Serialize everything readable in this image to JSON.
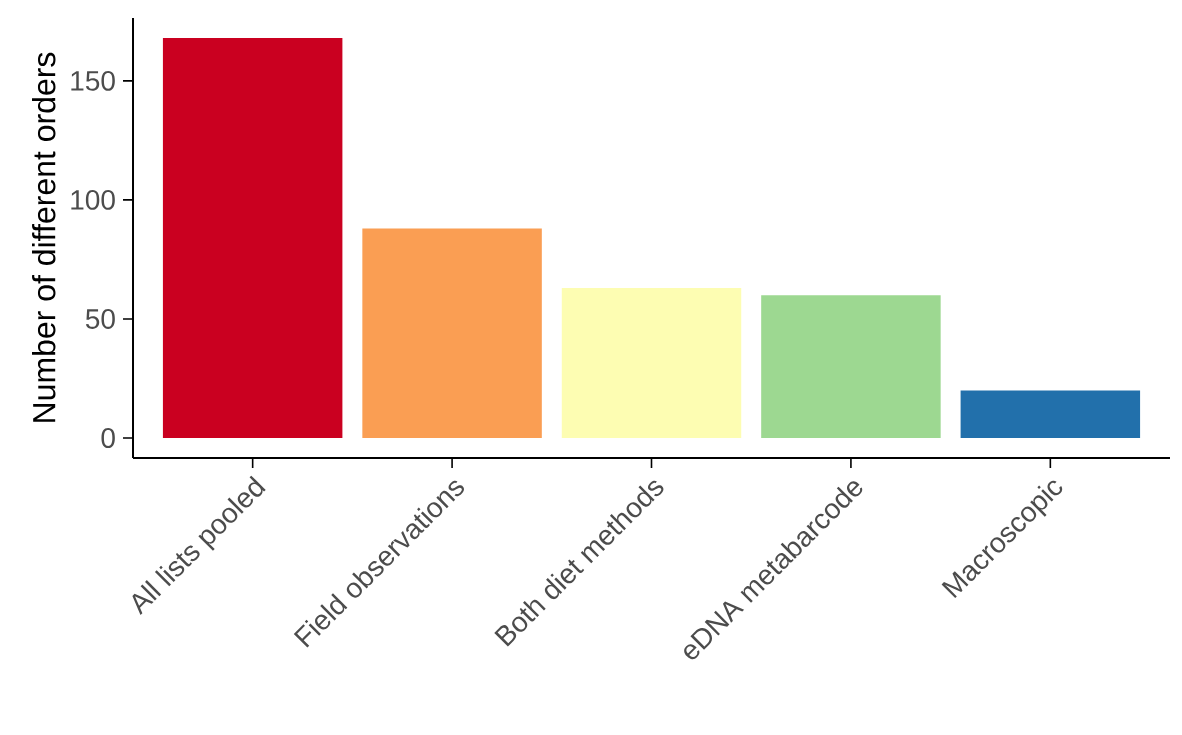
{
  "chart_data": {
    "type": "bar",
    "ylabel": "Number of different orders",
    "categories": [
      "All lists pooled",
      "Field observations",
      "Both diet methods",
      "eDNA metabarcode",
      "Macroscopic"
    ],
    "values": [
      168,
      88,
      63,
      60,
      20
    ],
    "colors": [
      "#ca0020",
      "#fa9e53",
      "#fdfdb2",
      "#9dd891",
      "#2270ab"
    ],
    "ylim": [
      -8.4,
      176.4
    ],
    "yticks": [
      0,
      50,
      100,
      150
    ],
    "grid": false
  }
}
